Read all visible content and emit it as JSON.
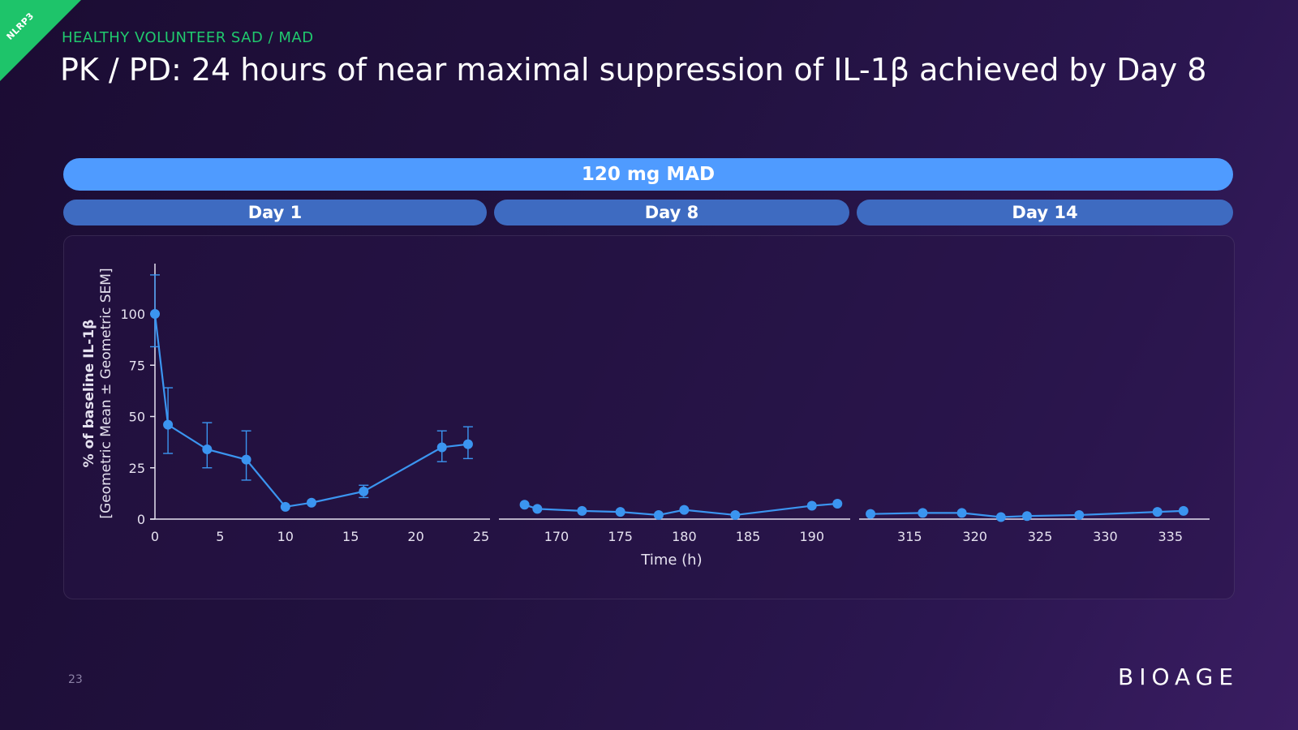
{
  "corner_tag": "NLRP3",
  "kicker": "HEALTHY VOLUNTEER SAD / MAD",
  "title": "PK / PD: 24 hours of near maximal suppression of IL-1β achieved by Day 8",
  "dose_label": "120 mg MAD",
  "day_labels": [
    "Day 1",
    "Day 8",
    "Day 14"
  ],
  "page_number": "23",
  "logo_text": "BIOAGE",
  "colors": {
    "accent_green": "#1ec46a",
    "series_blue": "#3b95f0",
    "dose_bar": "#4f9bff",
    "day_bar": "#3e6bc1"
  },
  "chart_data": {
    "type": "line",
    "ylabel": [
      "% of baseline IL-1β",
      "[Geometric Mean ± Geometric SEM]"
    ],
    "xlabel": "Time (h)",
    "ylim": [
      0,
      120
    ],
    "yticks": [
      0,
      25,
      50,
      75,
      100
    ],
    "panels": [
      {
        "name": "Day 1",
        "xlim": [
          0,
          25
        ],
        "xticks": [
          0,
          5,
          10,
          15,
          20,
          25
        ],
        "points": [
          {
            "x": 0,
            "y": 100,
            "lo": 84,
            "hi": 119
          },
          {
            "x": 1,
            "y": 46,
            "lo": 32,
            "hi": 64
          },
          {
            "x": 4,
            "y": 34,
            "lo": 25,
            "hi": 47
          },
          {
            "x": 7,
            "y": 29,
            "lo": 19,
            "hi": 43
          },
          {
            "x": 10,
            "y": 6
          },
          {
            "x": 12,
            "y": 8
          },
          {
            "x": 16,
            "y": 13.5,
            "lo": 10.5,
            "hi": 16.5
          },
          {
            "x": 22,
            "y": 35,
            "lo": 28,
            "hi": 43
          },
          {
            "x": 24,
            "y": 36.5,
            "lo": 29.5,
            "hi": 45
          }
        ]
      },
      {
        "name": "Day 8",
        "xlim": [
          166,
          193
        ],
        "xticks": [
          170,
          175,
          180,
          185,
          190
        ],
        "points": [
          {
            "x": 167.5,
            "y": 7
          },
          {
            "x": 168.5,
            "y": 5
          },
          {
            "x": 172,
            "y": 4
          },
          {
            "x": 175,
            "y": 3.5
          },
          {
            "x": 178,
            "y": 2
          },
          {
            "x": 180,
            "y": 4.5
          },
          {
            "x": 184,
            "y": 2
          },
          {
            "x": 190,
            "y": 6.5
          },
          {
            "x": 192,
            "y": 7.5
          }
        ]
      },
      {
        "name": "Day 14",
        "xlim": [
          311,
          338
        ],
        "xticks": [
          315,
          320,
          325,
          330,
          335
        ],
        "points": [
          {
            "x": 312,
            "y": 2.5
          },
          {
            "x": 316,
            "y": 3
          },
          {
            "x": 319,
            "y": 3
          },
          {
            "x": 322,
            "y": 1
          },
          {
            "x": 324,
            "y": 1.5
          },
          {
            "x": 328,
            "y": 2
          },
          {
            "x": 334,
            "y": 3.5
          },
          {
            "x": 336,
            "y": 4
          }
        ]
      }
    ]
  }
}
